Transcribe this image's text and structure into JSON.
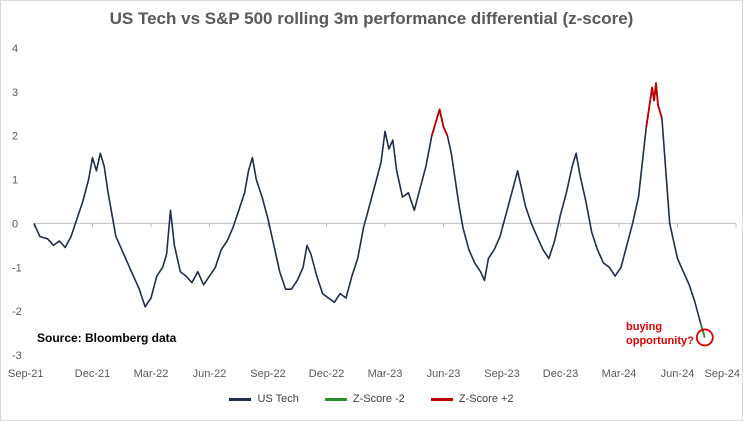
{
  "chart_data": {
    "type": "line",
    "title": "US Tech vs S&P 500 rolling 3m performance differential (z-score)",
    "xlabel": "",
    "ylabel": "",
    "ylim": [
      -3,
      4
    ],
    "y_ticks": [
      "-3",
      "-2",
      "-1",
      "0",
      "1",
      "2",
      "3",
      "4"
    ],
    "x_tick_labels": [
      "Sep-21",
      "Dec-21",
      "Mar-22",
      "Jun-22",
      "Sep-22",
      "Dec-22",
      "Mar-23",
      "Jun-23",
      "Sep-23",
      "Dec-23",
      "Mar-24",
      "Jun-24",
      "Sep-24"
    ],
    "x_range_months": [
      0,
      36
    ],
    "series": [
      {
        "name": "US Tech",
        "color": "#1f2e4a",
        "points": [
          [
            0,
            0.0
          ],
          [
            0.3,
            -0.3
          ],
          [
            0.7,
            -0.35
          ],
          [
            1.0,
            -0.5
          ],
          [
            1.3,
            -0.4
          ],
          [
            1.6,
            -0.55
          ],
          [
            1.9,
            -0.3
          ],
          [
            2.2,
            0.1
          ],
          [
            2.5,
            0.5
          ],
          [
            2.8,
            1.0
          ],
          [
            3.0,
            1.5
          ],
          [
            3.2,
            1.2
          ],
          [
            3.4,
            1.6
          ],
          [
            3.6,
            1.3
          ],
          [
            3.8,
            0.7
          ],
          [
            4.0,
            0.2
          ],
          [
            4.2,
            -0.3
          ],
          [
            4.5,
            -0.6
          ],
          [
            4.8,
            -0.9
          ],
          [
            5.1,
            -1.2
          ],
          [
            5.4,
            -1.5
          ],
          [
            5.7,
            -1.9
          ],
          [
            6.0,
            -1.7
          ],
          [
            6.3,
            -1.2
          ],
          [
            6.6,
            -1.0
          ],
          [
            6.8,
            -0.7
          ],
          [
            7.0,
            0.3
          ],
          [
            7.2,
            -0.5
          ],
          [
            7.5,
            -1.1
          ],
          [
            7.8,
            -1.2
          ],
          [
            8.1,
            -1.35
          ],
          [
            8.4,
            -1.1
          ],
          [
            8.7,
            -1.4
          ],
          [
            9.0,
            -1.2
          ],
          [
            9.3,
            -1.0
          ],
          [
            9.6,
            -0.6
          ],
          [
            9.9,
            -0.4
          ],
          [
            10.2,
            -0.1
          ],
          [
            10.5,
            0.3
          ],
          [
            10.8,
            0.7
          ],
          [
            11.0,
            1.2
          ],
          [
            11.2,
            1.5
          ],
          [
            11.4,
            1.0
          ],
          [
            11.7,
            0.6
          ],
          [
            12.0,
            0.1
          ],
          [
            12.3,
            -0.5
          ],
          [
            12.6,
            -1.1
          ],
          [
            12.9,
            -1.5
          ],
          [
            13.2,
            -1.5
          ],
          [
            13.5,
            -1.3
          ],
          [
            13.8,
            -1.0
          ],
          [
            14.0,
            -0.5
          ],
          [
            14.2,
            -0.7
          ],
          [
            14.5,
            -1.2
          ],
          [
            14.8,
            -1.6
          ],
          [
            15.1,
            -1.7
          ],
          [
            15.4,
            -1.8
          ],
          [
            15.7,
            -1.6
          ],
          [
            16.0,
            -1.7
          ],
          [
            16.3,
            -1.2
          ],
          [
            16.6,
            -0.8
          ],
          [
            16.9,
            -0.1
          ],
          [
            17.2,
            0.4
          ],
          [
            17.5,
            0.9
          ],
          [
            17.8,
            1.4
          ],
          [
            18.0,
            2.1
          ],
          [
            18.2,
            1.7
          ],
          [
            18.4,
            1.9
          ],
          [
            18.6,
            1.2
          ],
          [
            18.9,
            0.6
          ],
          [
            19.2,
            0.7
          ],
          [
            19.5,
            0.3
          ],
          [
            19.8,
            0.8
          ],
          [
            20.1,
            1.3
          ],
          [
            20.4,
            2.0
          ],
          [
            20.6,
            2.3
          ],
          [
            20.8,
            2.6
          ],
          [
            21.0,
            2.2
          ],
          [
            21.2,
            2.0
          ],
          [
            21.4,
            1.6
          ],
          [
            21.6,
            1.0
          ],
          [
            21.8,
            0.4
          ],
          [
            22.0,
            -0.1
          ],
          [
            22.3,
            -0.6
          ],
          [
            22.6,
            -0.9
          ],
          [
            22.9,
            -1.1
          ],
          [
            23.1,
            -1.3
          ],
          [
            23.3,
            -0.8
          ],
          [
            23.6,
            -0.6
          ],
          [
            23.9,
            -0.3
          ],
          [
            24.2,
            0.2
          ],
          [
            24.5,
            0.7
          ],
          [
            24.8,
            1.2
          ],
          [
            25.0,
            0.8
          ],
          [
            25.2,
            0.4
          ],
          [
            25.5,
            0.0
          ],
          [
            25.8,
            -0.3
          ],
          [
            26.1,
            -0.6
          ],
          [
            26.4,
            -0.8
          ],
          [
            26.7,
            -0.4
          ],
          [
            27.0,
            0.2
          ],
          [
            27.3,
            0.7
          ],
          [
            27.6,
            1.3
          ],
          [
            27.8,
            1.6
          ],
          [
            28.0,
            1.1
          ],
          [
            28.3,
            0.5
          ],
          [
            28.6,
            -0.2
          ],
          [
            28.9,
            -0.6
          ],
          [
            29.2,
            -0.9
          ],
          [
            29.5,
            -1.0
          ],
          [
            29.8,
            -1.2
          ],
          [
            30.1,
            -1.0
          ],
          [
            30.4,
            -0.5
          ],
          [
            30.7,
            0.0
          ],
          [
            31.0,
            0.6
          ],
          [
            31.2,
            1.4
          ],
          [
            31.4,
            2.2
          ],
          [
            31.6,
            2.8
          ],
          [
            31.7,
            3.1
          ],
          [
            31.8,
            2.8
          ],
          [
            31.9,
            3.2
          ],
          [
            32.0,
            2.7
          ],
          [
            32.2,
            2.4
          ],
          [
            32.4,
            1.2
          ],
          [
            32.6,
            0.0
          ],
          [
            32.8,
            -0.4
          ],
          [
            33.0,
            -0.8
          ],
          [
            33.3,
            -1.1
          ],
          [
            33.6,
            -1.4
          ],
          [
            33.9,
            -1.8
          ],
          [
            34.2,
            -2.3
          ],
          [
            34.4,
            -2.6
          ]
        ]
      },
      {
        "name": "Z-Score -2",
        "color": "#2e8b2e",
        "threshold": -2
      },
      {
        "name": "Z-Score +2",
        "color": "#c00000",
        "threshold": 2
      }
    ],
    "annotations": {
      "source": "Source: Bloomberg data",
      "callout": [
        "buying",
        "opportunity?"
      ]
    },
    "grid": false,
    "legend": "bottom"
  }
}
